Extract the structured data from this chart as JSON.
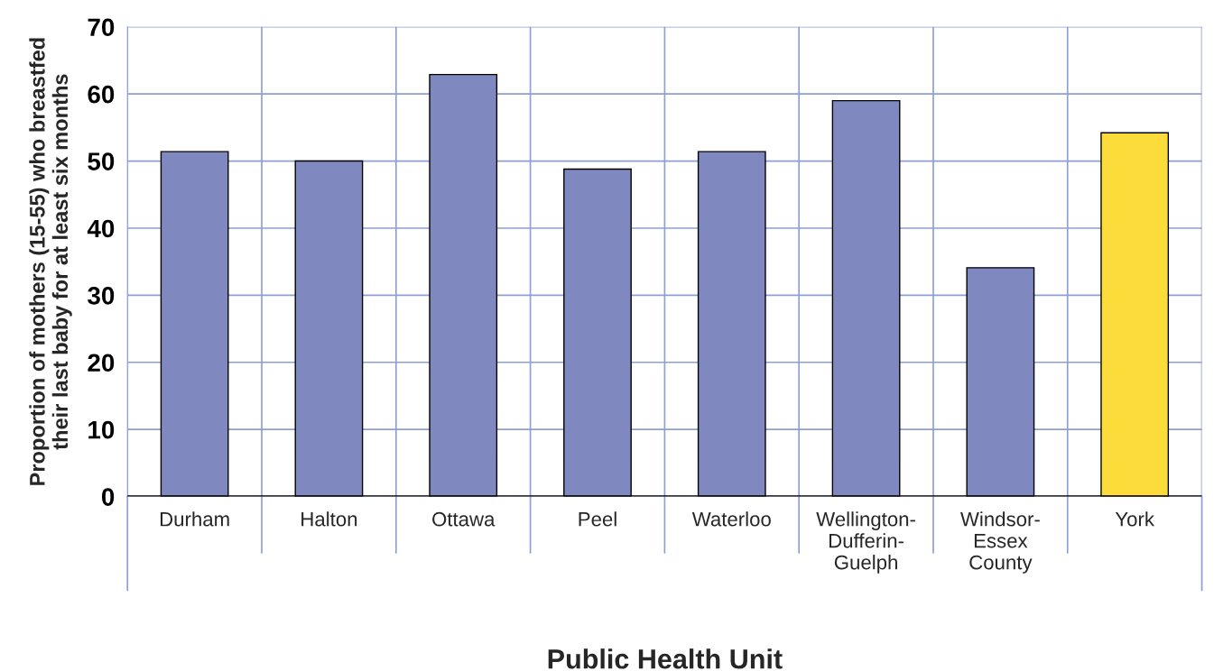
{
  "chart_data": {
    "type": "bar",
    "xlabel": "Public Health Unit",
    "ylabel": "Proportion of mothers (15-55) who breastfed\ntheir last baby for at least six months",
    "categories": [
      "Durham",
      "Halton",
      "Ottawa",
      "Peel",
      "Waterloo",
      "Wellington-\nDufferin-\nGuelph",
      "Windsor-\nEssex\nCounty",
      "York"
    ],
    "values": [
      51.4,
      50.0,
      62.9,
      48.8,
      51.4,
      59.0,
      34.1,
      54.2
    ],
    "colors": [
      "#8088c0",
      "#8088c0",
      "#8088c0",
      "#8088c0",
      "#8088c0",
      "#8088c0",
      "#8088c0",
      "#fcdc3a"
    ],
    "ylim": [
      0,
      70
    ],
    "yticks": [
      0,
      10,
      20,
      30,
      40,
      50,
      60,
      70
    ],
    "grid": true
  }
}
